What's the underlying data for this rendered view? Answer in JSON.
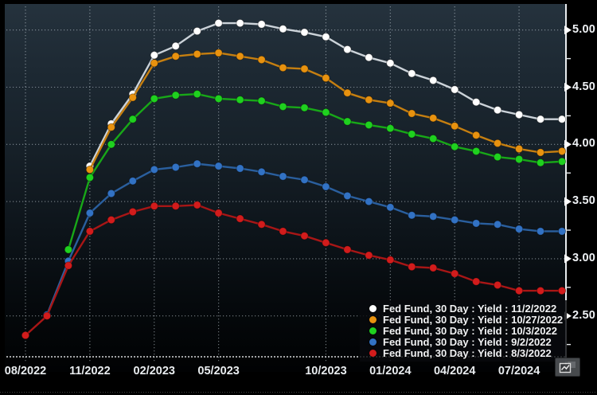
{
  "chart_data": {
    "type": "line",
    "title": "",
    "x_categories": [
      "08/2022",
      "09/2022",
      "10/2022",
      "11/2022",
      "12/2022",
      "01/2023",
      "02/2023",
      "03/2023",
      "04/2023",
      "05/2023",
      "06/2023",
      "07/2023",
      "08/2023",
      "09/2023",
      "10/2023",
      "11/2023",
      "12/2023",
      "01/2024",
      "02/2024",
      "03/2024",
      "04/2024",
      "05/2024",
      "06/2024",
      "07/2024",
      "08/2024",
      "09/2024"
    ],
    "series": [
      {
        "name": "Fed Fund, 30 Day : Yield : 11/2/2022",
        "quote_date": "11/2/2022",
        "color": "#ffffff",
        "line_color": "#ccd3d9",
        "values": [
          null,
          null,
          null,
          3.81,
          4.18,
          4.44,
          4.78,
          4.86,
          4.99,
          5.06,
          5.06,
          5.05,
          5.01,
          4.98,
          4.94,
          4.83,
          4.76,
          4.71,
          4.62,
          4.56,
          4.48,
          4.37,
          4.3,
          4.26,
          4.22,
          4.22
        ]
      },
      {
        "name": "Fed Fund, 30 Day : Yield : 10/27/2022",
        "quote_date": "10/27/2022",
        "color": "#e8920f",
        "line_color": "#c67f10",
        "values": [
          null,
          null,
          null,
          3.78,
          4.15,
          4.41,
          4.71,
          4.77,
          4.79,
          4.8,
          4.77,
          4.74,
          4.67,
          4.66,
          4.58,
          4.45,
          4.39,
          4.36,
          4.27,
          4.23,
          4.16,
          4.08,
          4.01,
          3.96,
          3.93,
          3.94
        ]
      },
      {
        "name": "Fed Fund, 30 Day : Yield : 10/3/2022",
        "quote_date": "10/3/2022",
        "color": "#1fd11f",
        "line_color": "#18a818",
        "values": [
          null,
          null,
          3.08,
          3.71,
          4.0,
          4.22,
          4.4,
          4.43,
          4.44,
          4.4,
          4.39,
          4.38,
          4.33,
          4.32,
          4.28,
          4.2,
          4.17,
          4.14,
          4.09,
          4.05,
          3.98,
          3.94,
          3.89,
          3.87,
          3.84,
          3.85
        ]
      },
      {
        "name": "Fed Fund, 30 Day : Yield : 9/2/2022",
        "quote_date": "9/2/2022",
        "color": "#3272c4",
        "line_color": "#2a5f9e",
        "values": [
          null,
          2.51,
          2.98,
          3.4,
          3.57,
          3.68,
          3.78,
          3.8,
          3.83,
          3.81,
          3.79,
          3.76,
          3.72,
          3.69,
          3.63,
          3.55,
          3.5,
          3.45,
          3.38,
          3.37,
          3.34,
          3.31,
          3.3,
          3.26,
          3.24,
          3.24
        ]
      },
      {
        "name": "Fed Fund, 30 Day : Yield : 8/3/2022",
        "quote_date": "8/3/2022",
        "color": "#d21c1c",
        "line_color": "#a81616",
        "values": [
          2.33,
          2.5,
          2.94,
          3.24,
          3.34,
          3.41,
          3.46,
          3.46,
          3.47,
          3.4,
          3.35,
          3.3,
          3.24,
          3.2,
          3.14,
          3.08,
          3.03,
          2.99,
          2.93,
          2.92,
          2.87,
          2.8,
          2.77,
          2.72,
          2.72,
          2.72
        ]
      }
    ],
    "y_axis": {
      "side": "right",
      "range": [
        2.25,
        5.3
      ],
      "ticks": [
        {
          "label": "5.00",
          "value": 5.0
        },
        {
          "label": "4.50",
          "value": 4.5
        },
        {
          "label": "4.00",
          "value": 4.0
        },
        {
          "label": "3.50",
          "value": 3.5
        },
        {
          "label": "3.00",
          "value": 3.0
        },
        {
          "label": "2.50",
          "value": 2.5
        }
      ],
      "minor_tick_values": [
        4.75,
        4.25,
        3.75,
        3.25,
        2.75,
        2.25
      ]
    },
    "x_axis": {
      "ticks": [
        {
          "label": "08/2022",
          "month_index": 0
        },
        {
          "label": "11/2022",
          "month_index": 3
        },
        {
          "label": "02/2023",
          "month_index": 6
        },
        {
          "label": "05/2023",
          "month_index": 9
        },
        {
          "label": "10/2023",
          "month_index": 14
        },
        {
          "label": "01/2024",
          "month_index": 17
        },
        {
          "label": "04/2024",
          "month_index": 20
        },
        {
          "label": "07/2024",
          "month_index": 23
        }
      ]
    },
    "grid": "dotted",
    "legend_position": "bottom-right"
  },
  "legend": {
    "items": [
      {
        "label": "Fed Fund, 30 Day : Yield : 11/2/2022",
        "color": "#ffffff"
      },
      {
        "label": "Fed Fund, 30 Day : Yield : 10/27/2022",
        "color": "#e8920f"
      },
      {
        "label": "Fed Fund, 30 Day : Yield : 10/3/2022",
        "color": "#1fd11f"
      },
      {
        "label": "Fed Fund, 30 Day : Yield : 9/2/2022",
        "color": "#3272c4"
      },
      {
        "label": "Fed Fund, 30 Day : Yield : 8/3/2022",
        "color": "#d21c1c"
      }
    ]
  },
  "icons": {
    "corner_icon": "chart-window-icon"
  },
  "colors": {
    "background_top": "#25323d",
    "background_bottom": "#010203",
    "grid": "#d2dce4",
    "axis": "#e8ecef"
  }
}
